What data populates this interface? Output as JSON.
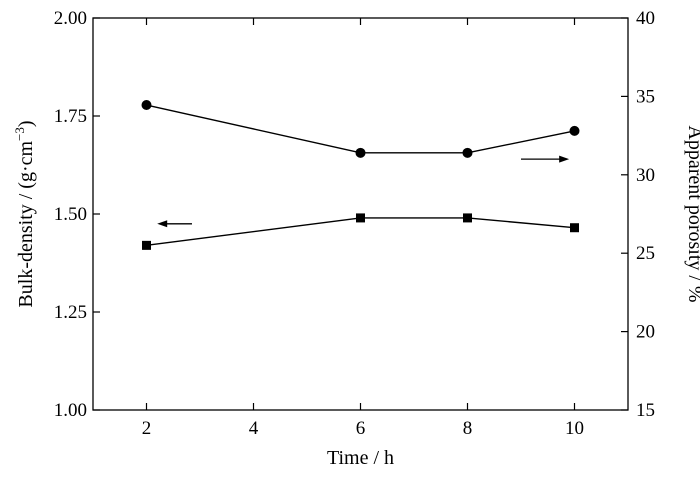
{
  "chart_data": {
    "type": "line",
    "xlabel": "Time / h",
    "ylabel_left": "Bulk-density / (g·cm",
    "ylabel_left_sup": "−3",
    "ylabel_left_close": ")",
    "ylabel_right": "Apparent porosity / %",
    "xlim": [
      1,
      11
    ],
    "ylim_left": [
      1.0,
      2.0
    ],
    "ylim_right": [
      15,
      40
    ],
    "xticks": [
      2,
      4,
      6,
      8,
      10
    ],
    "xtick_labels": [
      "2",
      "4",
      "6",
      "8",
      "10"
    ],
    "yticks_left": [
      1.0,
      1.25,
      1.5,
      1.75,
      2.0
    ],
    "ytick_labels_left": [
      "1.00",
      "1.25",
      "1.50",
      "1.75",
      "2.00"
    ],
    "yticks_right": [
      15,
      20,
      25,
      30,
      35,
      40
    ],
    "ytick_labels_right": [
      "15",
      "20",
      "25",
      "30",
      "35",
      "40"
    ],
    "series": [
      {
        "axis": "left",
        "marker": "square",
        "x": [
          2,
          6,
          8,
          10
        ],
        "values": [
          1.42,
          1.49,
          1.49,
          1.465
        ]
      },
      {
        "axis": "right",
        "marker": "circle",
        "x": [
          2,
          6,
          8,
          10
        ],
        "values": [
          34.45,
          31.4,
          31.4,
          32.8
        ]
      }
    ],
    "arrows": [
      {
        "direction": "left",
        "axis": "left",
        "x": [
          2.2,
          2.85
        ],
        "y": 1.475
      },
      {
        "direction": "right",
        "axis": "right",
        "x": [
          9.0,
          9.9
        ],
        "y": 31.0
      }
    ],
    "colors": {
      "line": "#000000",
      "marker": "#000000"
    }
  }
}
